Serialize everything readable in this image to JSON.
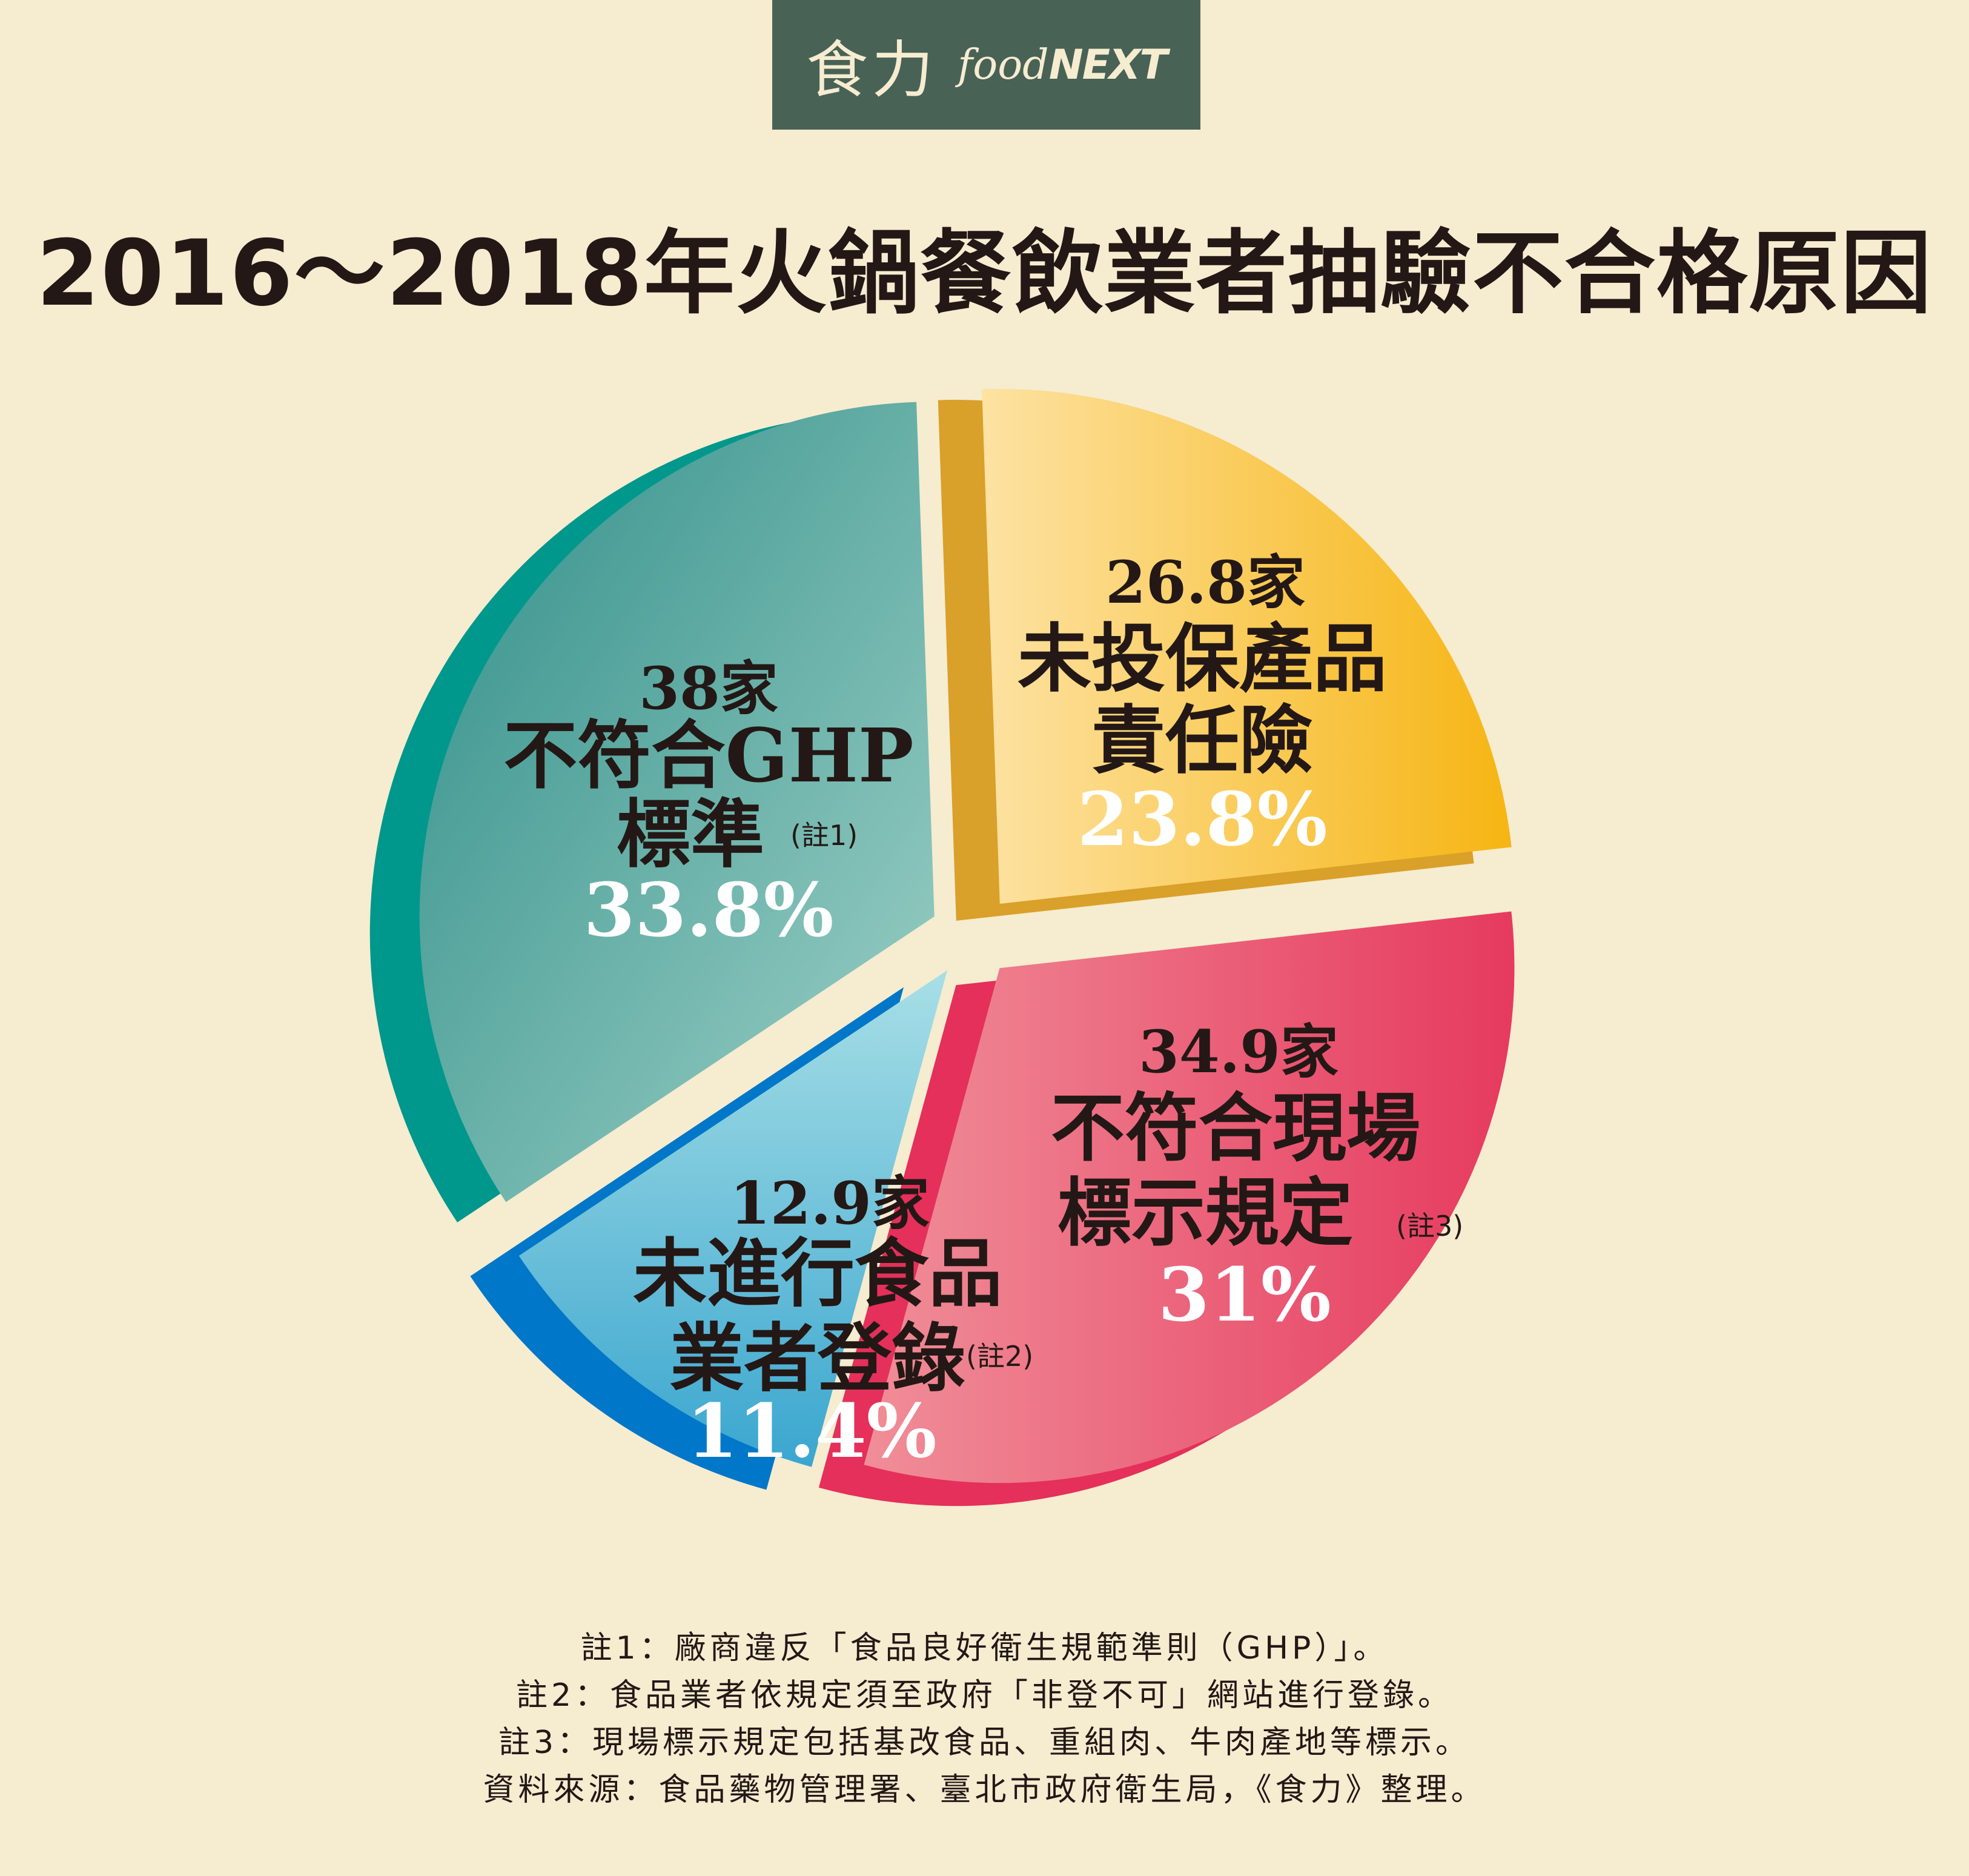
{
  "logo": {
    "cn": "食力",
    "en_prefix": "food",
    "en_suffix": "NEXT"
  },
  "title": "2016～2018年火鍋餐飲業者抽驗不合格原因",
  "chart_data": {
    "type": "pie",
    "title": "2016～2018年火鍋餐飲業者抽驗不合格原因",
    "unit": "家",
    "slices": [
      {
        "label": "不符合GHP標準",
        "label_lines": [
          "不符合GHP",
          "標準"
        ],
        "note": "(註1)",
        "count": 38,
        "count_text": "38家",
        "percent": 33.8,
        "percent_text": "33.8%",
        "color": "#3f9e98",
        "side_color": "#00978c"
      },
      {
        "label": "未投保產品責任險",
        "label_lines": [
          "未投保產品",
          "責任險"
        ],
        "note": "",
        "count": 26.8,
        "count_text": "26.8家",
        "percent": 23.8,
        "percent_text": "23.8%",
        "color": "#f9c23c",
        "side_color": "#d9a02a"
      },
      {
        "label": "不符合現場標示規定",
        "label_lines": [
          "不符合現場",
          "標示規定"
        ],
        "note": "(註3)",
        "count": 34.9,
        "count_text": "34.9家",
        "percent": 31,
        "percent_text": "31%",
        "color": "#ea5a73",
        "side_color": "#e4305a"
      },
      {
        "label": "未進行食品業者登錄",
        "label_lines": [
          "未進行食品",
          "業者登錄"
        ],
        "note": "(註2)",
        "count": 12.9,
        "count_text": "12.9家",
        "percent": 11.4,
        "percent_text": "11.4%",
        "color": "#7ccbdb",
        "side_color": "#0077c8"
      }
    ]
  },
  "notes": [
    "註1：廠商違反「食品良好衛生規範準則（GHP）」。",
    "註2：食品業者依規定須至政府「非登不可」網站進行登錄。",
    "註3：現場標示規定包括基改食品、重組肉、牛肉產地等標示。",
    "資料來源：食品藥物管理署、臺北市政府衛生局，《食力》整理。"
  ]
}
